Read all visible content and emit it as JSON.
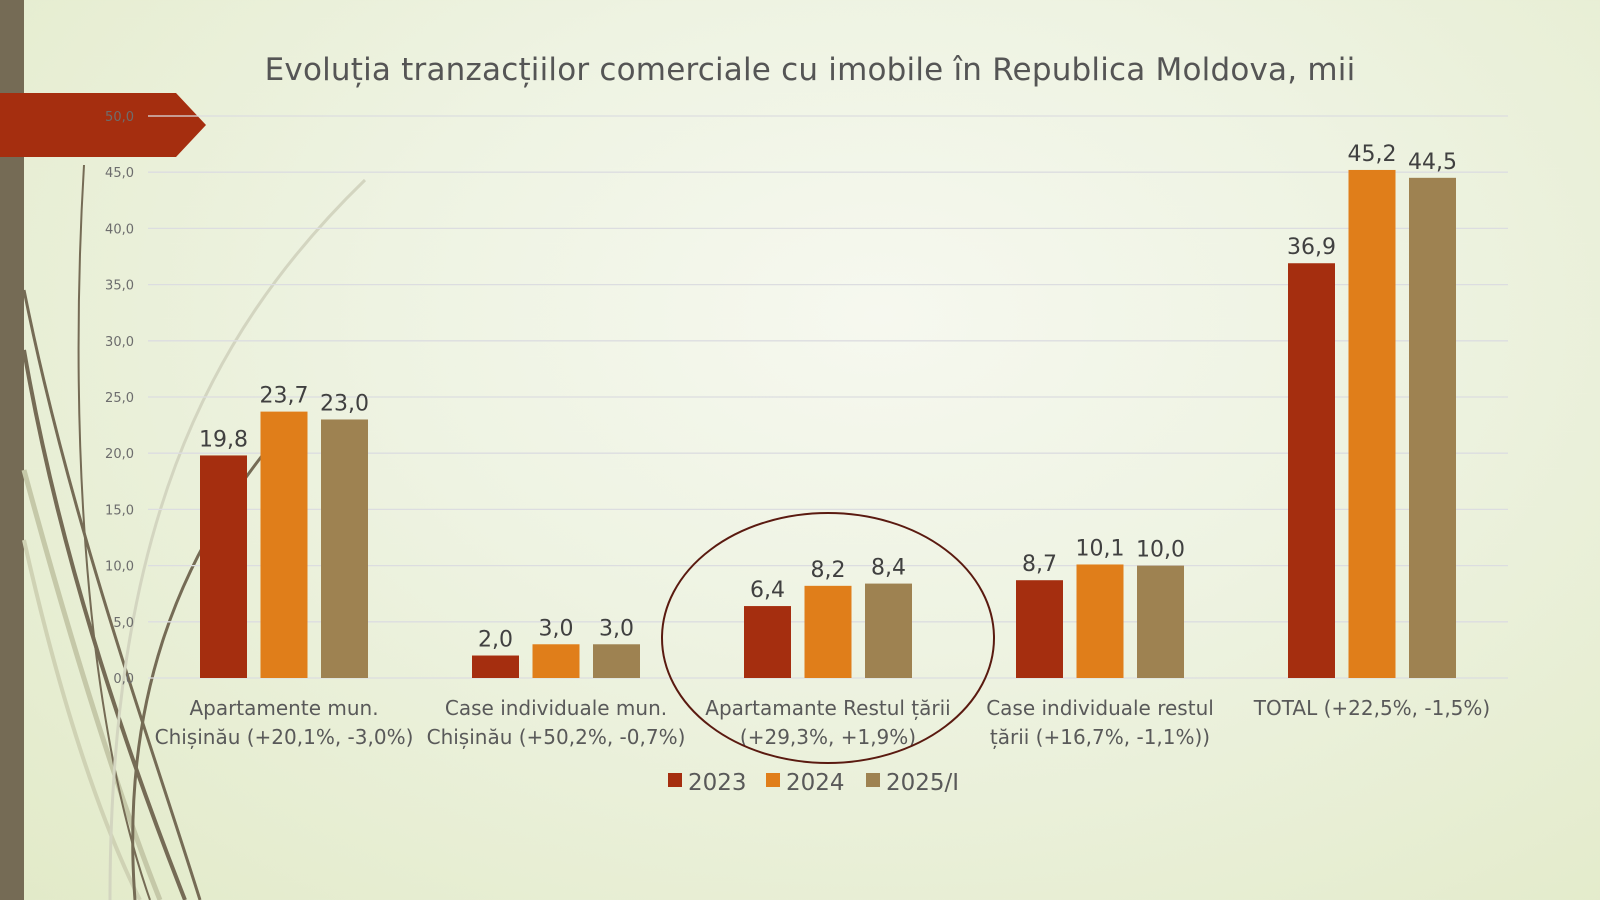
{
  "slide": {
    "title": "Evoluția tranzacțiilor comerciale cu imobile în Republica Moldova, mii",
    "accent_color": "#a52e0f",
    "side_bar_color": "#756b55",
    "highlight_ring_color": "#5a1a10"
  },
  "chart_data": {
    "type": "bar",
    "title": "Evoluția tranzacțiilor comerciale cu imobile în Republica Moldova, mii",
    "xlabel": "",
    "ylabel": "",
    "ylim": [
      0,
      50
    ],
    "ytick_step": 5,
    "yticks": [
      "0,0",
      "5,0",
      "10,0",
      "15,0",
      "20,0",
      "25,0",
      "30,0",
      "35,0",
      "40,0",
      "45,0",
      "50,0"
    ],
    "grid": true,
    "legend_position": "bottom-center",
    "categories": [
      [
        "Apartamente mun.",
        "Chișinău (+20,1%, -3,0%)"
      ],
      [
        "Case individuale mun.",
        "Chișinău (+50,2%, -0,7%)"
      ],
      [
        "Apartamante Restul țării",
        "(+29,3%, +1,9%)"
      ],
      [
        "Case individuale restul",
        "țării (+16,7%, -1,1%))"
      ],
      [
        "TOTAL (+22,5%, -1,5%)"
      ]
    ],
    "series": [
      {
        "name": "2023",
        "color": "#a52e0f",
        "values": [
          19.8,
          2.0,
          6.4,
          8.7,
          36.9
        ],
        "labels": [
          "19,8",
          "2,0",
          "6,4",
          "8,7",
          "36,9"
        ]
      },
      {
        "name": "2024",
        "color": "#e07e1a",
        "values": [
          23.7,
          3.0,
          8.2,
          10.1,
          45.2
        ],
        "labels": [
          "23,7",
          "3,0",
          "8,2",
          "10,1",
          "45,2"
        ]
      },
      {
        "name": "2025/I",
        "color": "#9e8251",
        "values": [
          23.0,
          3.0,
          8.4,
          10.0,
          44.5
        ],
        "labels": [
          "23,0",
          "3,0",
          "8,4",
          "10,0",
          "44,5"
        ]
      }
    ],
    "annotations": [
      {
        "type": "ellipse",
        "highlights_category": "Apartamante Restul țării"
      }
    ]
  }
}
